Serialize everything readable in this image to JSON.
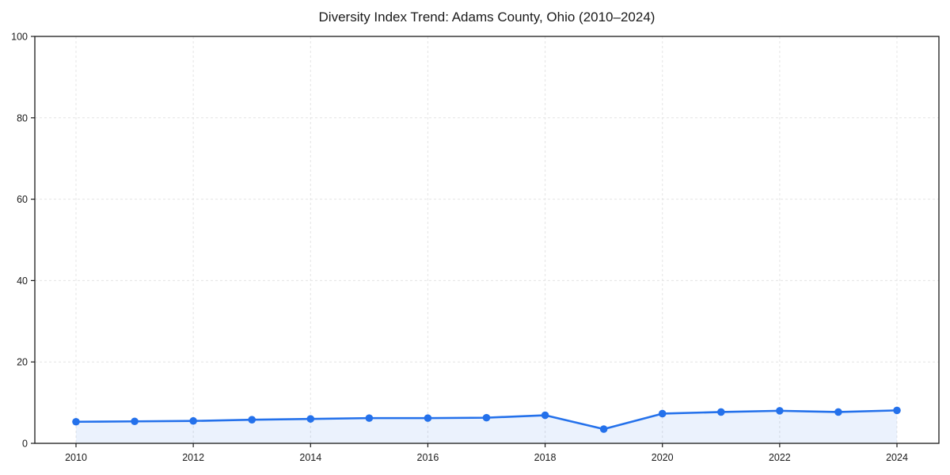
{
  "chart_data": {
    "type": "line",
    "title": "Diversity Index Trend: Adams County, Ohio (2010–2024)",
    "x": [
      2010,
      2011,
      2012,
      2013,
      2014,
      2015,
      2016,
      2017,
      2018,
      2019,
      2020,
      2021,
      2022,
      2023,
      2024
    ],
    "values": [
      5.3,
      5.4,
      5.5,
      5.8,
      6.0,
      6.2,
      6.2,
      6.3,
      6.9,
      3.5,
      7.3,
      7.7,
      8.0,
      7.7,
      8.1
    ],
    "xlabel": "",
    "ylabel": "",
    "ylim": [
      0,
      100
    ],
    "yticks": [
      0,
      20,
      40,
      60,
      80,
      100
    ],
    "xticks": [
      2010,
      2012,
      2014,
      2016,
      2018,
      2020,
      2022,
      2024
    ],
    "grid": true,
    "grid_style": "dashed",
    "legend": "none",
    "marker": "circle",
    "area_fill": true,
    "colors": {
      "line": "#2471eb",
      "fill": "#e9f0fc",
      "grid": "#e4e4e4",
      "axis": "#1a1a1a",
      "background": "#ffffff"
    }
  }
}
